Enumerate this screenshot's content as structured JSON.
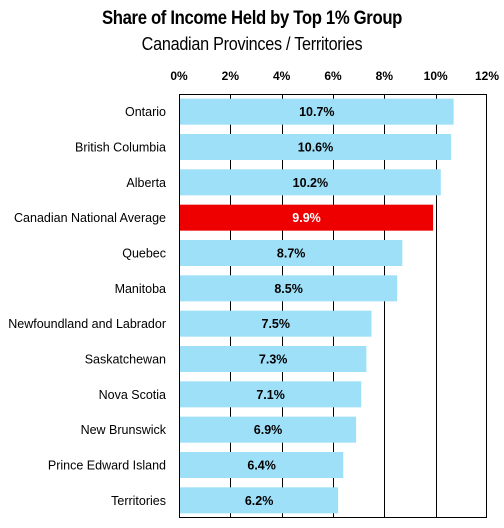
{
  "chart_data": {
    "type": "bar",
    "orientation": "horizontal",
    "title": "Share of Income Held by Top 1% Group",
    "subtitle": "Canadian Provinces / Territories",
    "categories": [
      "Ontario",
      "British Columbia",
      "Alberta",
      "Canadian National Average",
      "Quebec",
      "Manitoba",
      "Newfoundland and Labrador",
      "Saskatchewan",
      "Nova Scotia",
      "New Brunswick",
      "Prince Edward Island",
      "Territories"
    ],
    "values": [
      10.7,
      10.6,
      10.2,
      9.9,
      8.7,
      8.5,
      7.5,
      7.3,
      7.1,
      6.9,
      6.4,
      6.2
    ],
    "value_labels": [
      "10.7%",
      "10.6%",
      "10.2%",
      "9.9%",
      "8.7%",
      "8.5%",
      "7.5%",
      "7.3%",
      "7.1%",
      "6.9%",
      "6.4%",
      "6.2%"
    ],
    "highlight_category": "Canadian National Average",
    "xlim": [
      0,
      12
    ],
    "xticks": [
      0,
      2,
      4,
      6,
      8,
      10,
      12
    ],
    "xtick_labels": [
      "0%",
      "2%",
      "4%",
      "6%",
      "8%",
      "10%",
      "12%"
    ],
    "axis_position": "top",
    "grid": true,
    "xlabel": "",
    "ylabel": "",
    "colors": {
      "bar": "#9fe0f9",
      "highlight": "#ee0000",
      "grid": "#000000"
    }
  }
}
